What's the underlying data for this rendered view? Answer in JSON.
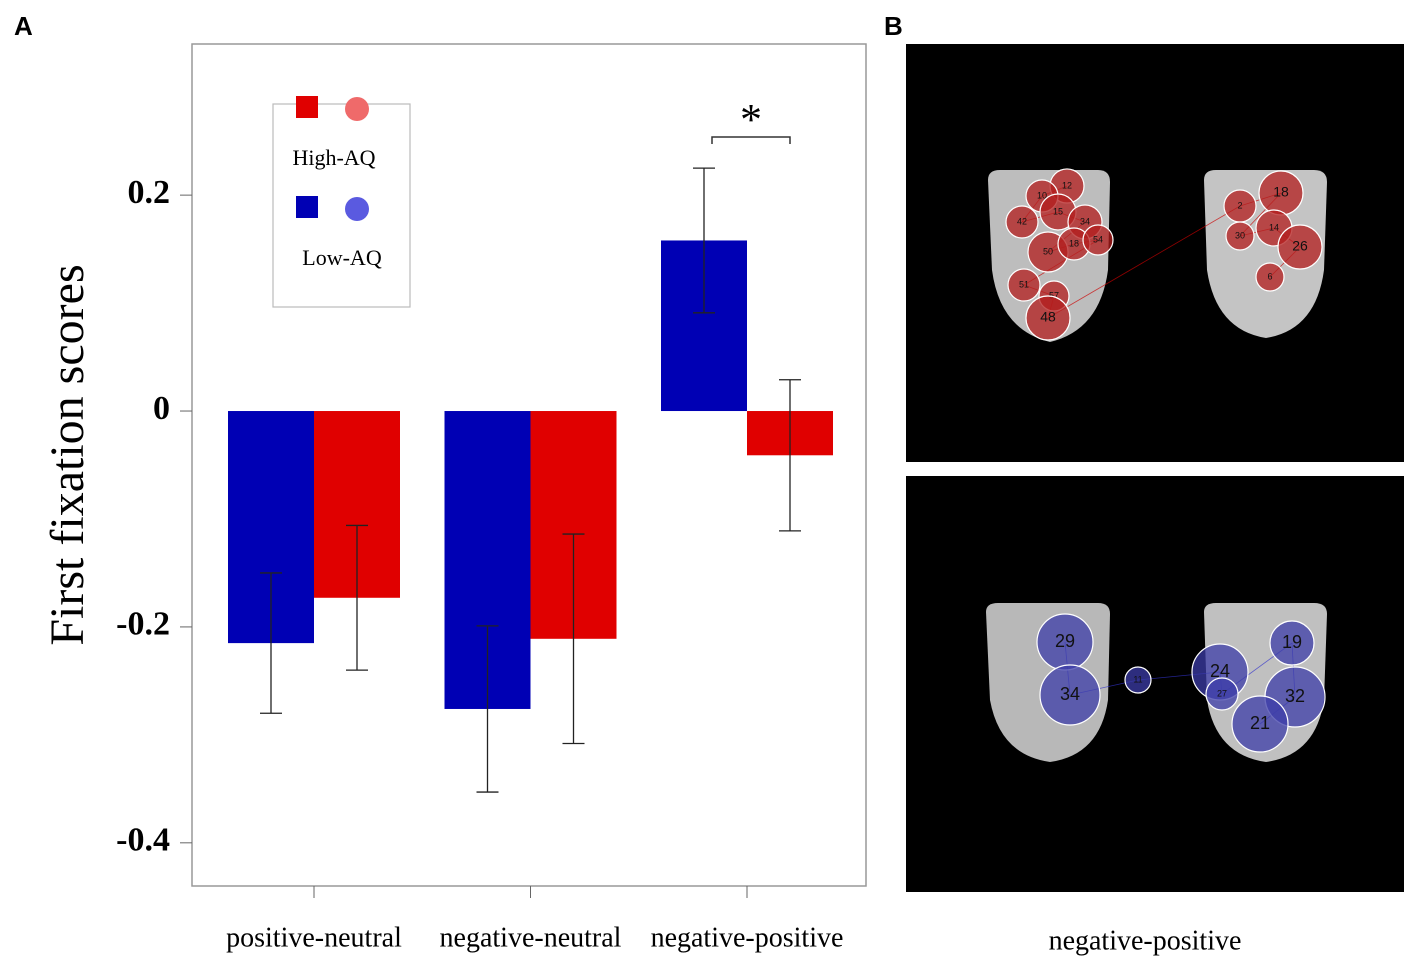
{
  "chart_data": {
    "type": "bar",
    "panel_labels": [
      "A",
      "B"
    ],
    "ylabel": "First fixation scores",
    "categories": [
      "positive-neutral",
      "negative-neutral",
      "negative-positive"
    ],
    "series": [
      {
        "name": "Low-AQ",
        "color": "#0000b4",
        "marker_color": "#5a5ae0",
        "values": [
          -0.215,
          -0.276,
          0.158
        ],
        "errors": [
          0.065,
          0.077,
          0.067
        ]
      },
      {
        "name": "High-AQ",
        "color": "#e00000",
        "marker_color": "#ef6a6a",
        "values": [
          -0.173,
          -0.211,
          -0.041
        ],
        "errors": [
          0.067,
          0.097,
          0.07
        ]
      }
    ],
    "ylim": [
      -0.44,
      0.34
    ],
    "yticks": [
      {
        "value": -0.4,
        "label": "-0.4"
      },
      {
        "value": -0.2,
        "label": "-0.2"
      },
      0,
      0.2
    ],
    "significance": {
      "label": "*",
      "category": 2
    },
    "image_panel": {
      "caption": "negative-positive",
      "top_fixations": [
        "12",
        "10",
        "42",
        "15",
        "34",
        "50",
        "18",
        "54",
        "51",
        "57",
        "48",
        "2",
        "18",
        "30",
        "14",
        "26",
        "6"
      ],
      "bottom_fixations": [
        "29",
        "34",
        "11",
        "24",
        "27",
        "19",
        "32",
        "21"
      ]
    }
  }
}
